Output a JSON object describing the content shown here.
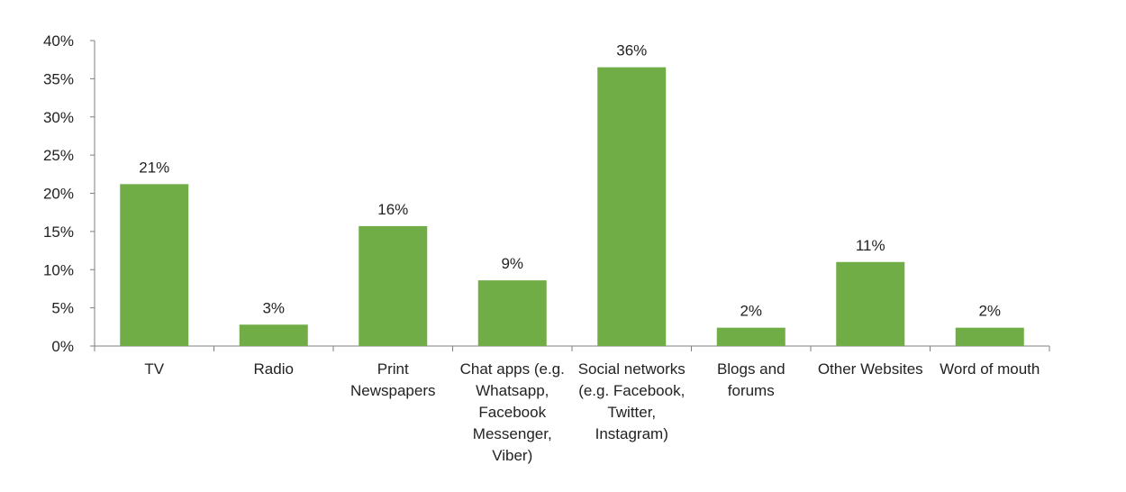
{
  "chart_data": {
    "type": "bar",
    "title": "",
    "xlabel": "",
    "ylabel": "",
    "categories": [
      [
        "TV"
      ],
      [
        "Radio"
      ],
      [
        "Print",
        "Newspapers"
      ],
      [
        "Chat apps (e.g.",
        "Whatsapp,",
        "Facebook",
        "Messenger,",
        "Viber)"
      ],
      [
        "Social networks",
        "(e.g. Facebook,",
        "Twitter,",
        "Instagram)"
      ],
      [
        "Blogs and",
        "forums"
      ],
      [
        "Other Websites"
      ],
      [
        "Word of mouth"
      ]
    ],
    "values": [
      21.2,
      2.8,
      15.7,
      8.6,
      36.5,
      2.4,
      11.0,
      2.4
    ],
    "data_labels": [
      "21%",
      "3%",
      "16%",
      "9%",
      "36%",
      "2%",
      "11%",
      "2%"
    ],
    "ylim": [
      0,
      40
    ],
    "yticks": [
      "0%",
      "5%",
      "10%",
      "15%",
      "20%",
      "25%",
      "30%",
      "35%",
      "40%"
    ],
    "ytick_values": [
      0,
      5,
      10,
      15,
      20,
      25,
      30,
      35,
      40
    ],
    "bar_color": "#70ad47",
    "axis_color": "#7f7f7f",
    "grid": false,
    "legend": "none"
  }
}
